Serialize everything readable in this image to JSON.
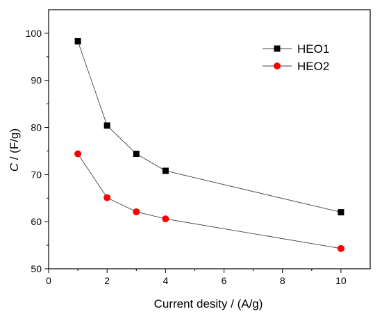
{
  "chart_data": {
    "type": "line",
    "xlabel": "Current desity / (A/g)",
    "ylabel_italic": "C",
    "ylabel_rest": " / (F/g)",
    "xlim": [
      0,
      11
    ],
    "ylim": [
      50,
      105
    ],
    "xticks": [
      0,
      2,
      4,
      6,
      8,
      10
    ],
    "yticks": [
      50,
      60,
      70,
      80,
      90,
      100
    ],
    "x": [
      1,
      2,
      3,
      4,
      10
    ],
    "series": [
      {
        "name": "HEO1",
        "marker": "square",
        "color": "#000000",
        "values": [
          98.3,
          80.4,
          74.4,
          70.8,
          62.0
        ]
      },
      {
        "name": "HEO2",
        "marker": "circle",
        "color": "#ff0000",
        "values": [
          74.4,
          65.1,
          62.1,
          60.6,
          54.3
        ]
      }
    ],
    "legend": "top-right",
    "grid": false
  }
}
